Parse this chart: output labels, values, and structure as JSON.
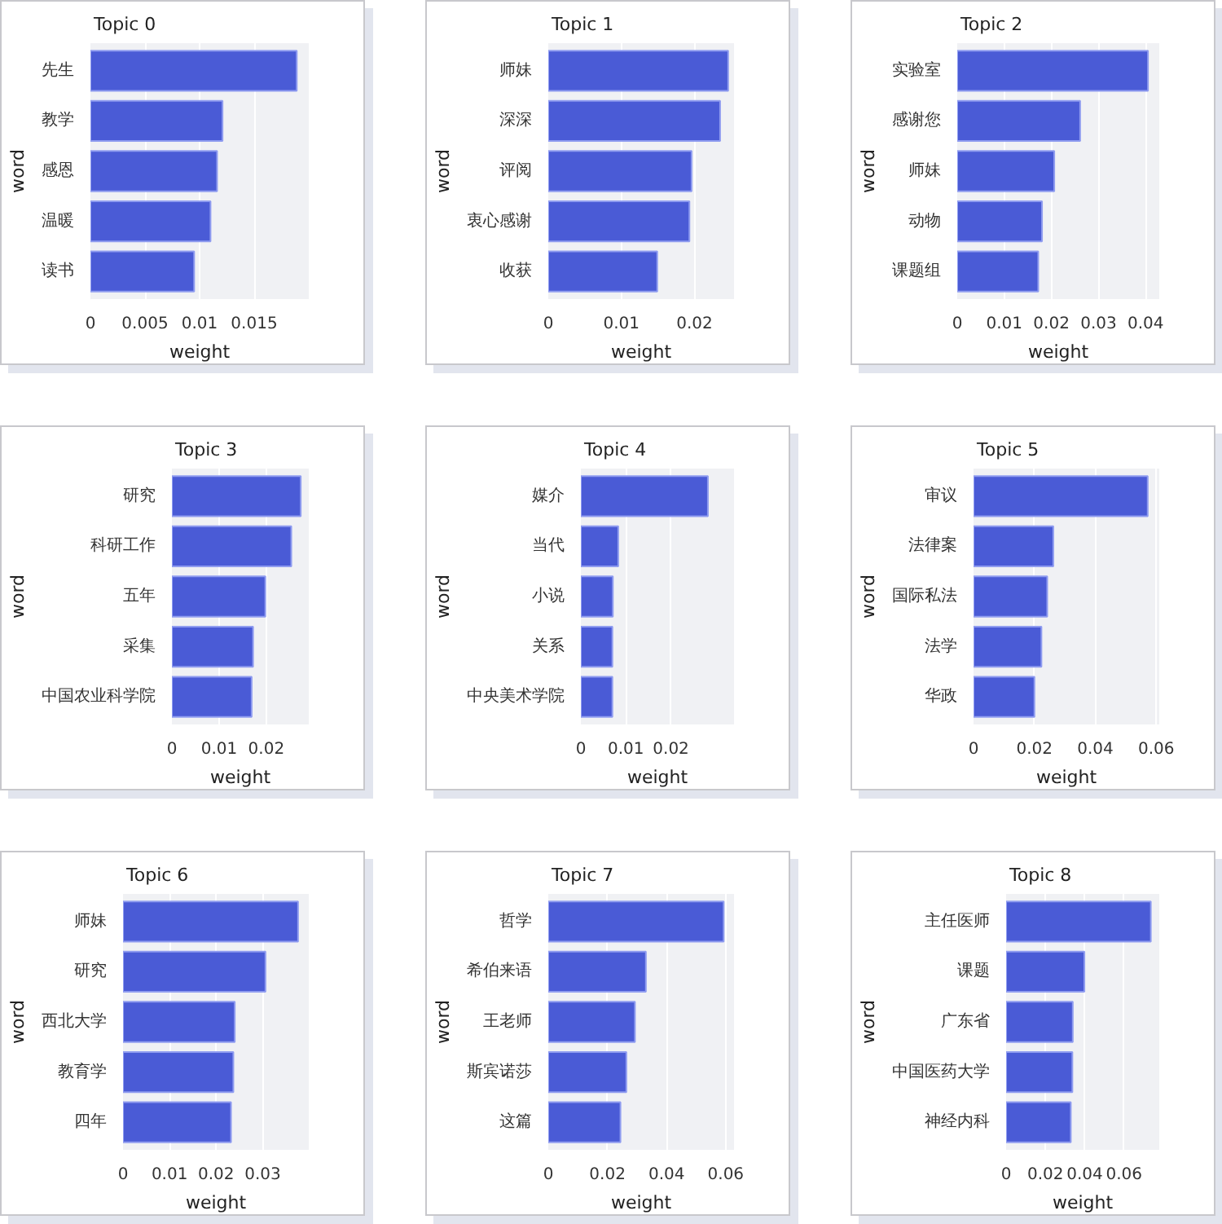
{
  "chart_data": [
    {
      "type": "bar",
      "orientation": "horizontal",
      "title": "Topic 0",
      "xlabel": "weight",
      "ylabel": "word",
      "categories": [
        "先生",
        "教学",
        "感恩",
        "温暖",
        "读书"
      ],
      "values": [
        0.0189,
        0.0121,
        0.0116,
        0.011,
        0.0095
      ],
      "color": "#4a5bd6",
      "xlim": [
        0,
        0.02
      ],
      "xticks": [
        0,
        0.005,
        0.01,
        0.015
      ],
      "grid": "x"
    },
    {
      "type": "bar",
      "orientation": "horizontal",
      "title": "Topic 1",
      "xlabel": "weight",
      "ylabel": "word",
      "categories": [
        "师妹",
        "深深",
        "评阅",
        "衷心感谢",
        "收获"
      ],
      "values": [
        0.0246,
        0.0235,
        0.0196,
        0.0193,
        0.0149
      ],
      "color": "#4a5bd6",
      "xlim": [
        0,
        0.0254
      ],
      "xticks": [
        0,
        0.01,
        0.02
      ],
      "grid": "x"
    },
    {
      "type": "bar",
      "orientation": "horizontal",
      "title": "Topic 2",
      "xlabel": "weight",
      "ylabel": "word",
      "categories": [
        "实验室",
        "感谢您",
        "师妹",
        "动物",
        "课题组"
      ],
      "values": [
        0.0405,
        0.0261,
        0.0206,
        0.018,
        0.0172
      ],
      "color": "#4a5bd6",
      "xlim": [
        0,
        0.0429
      ],
      "xticks": [
        0,
        0.01,
        0.02,
        0.03,
        0.04
      ],
      "grid": "x"
    },
    {
      "type": "bar",
      "orientation": "horizontal",
      "title": "Topic 3",
      "xlabel": "weight",
      "ylabel": "word",
      "categories": [
        "研究",
        "科研工作",
        "五年",
        "采集",
        "中国农业科学院"
      ],
      "values": [
        0.0273,
        0.0253,
        0.0198,
        0.0172,
        0.0169
      ],
      "color": "#4a5bd6",
      "xlim": [
        0,
        0.029
      ],
      "xticks": [
        0,
        0.01,
        0.02
      ],
      "grid": "x"
    },
    {
      "type": "bar",
      "orientation": "horizontal",
      "title": "Topic 4",
      "xlabel": "weight",
      "ylabel": "word",
      "categories": [
        "媒介",
        "当代",
        "小说",
        "关系",
        "中央美术学院"
      ],
      "values": [
        0.0282,
        0.0083,
        0.0071,
        0.007,
        0.007
      ],
      "color": "#4a5bd6",
      "xlim": [
        0,
        0.034
      ],
      "xticks": [
        0,
        0.01,
        0.02
      ],
      "grid": "x"
    },
    {
      "type": "bar",
      "orientation": "horizontal",
      "title": "Topic 5",
      "xlabel": "weight",
      "ylabel": "word",
      "categories": [
        "审议",
        "法律案",
        "国际私法",
        "法学",
        "华政"
      ],
      "values": [
        0.0572,
        0.0262,
        0.0242,
        0.0223,
        0.02
      ],
      "color": "#4a5bd6",
      "xlim": [
        0,
        0.061
      ],
      "xticks": [
        0,
        0.02,
        0.04,
        0.06
      ],
      "grid": "x"
    },
    {
      "type": "bar",
      "orientation": "horizontal",
      "title": "Topic 6",
      "xlabel": "weight",
      "ylabel": "word",
      "categories": [
        "师妹",
        "研究",
        "西北大学",
        "教育学",
        "四年"
      ],
      "values": [
        0.0376,
        0.0306,
        0.024,
        0.0237,
        0.0232
      ],
      "color": "#4a5bd6",
      "xlim": [
        0,
        0.0399
      ],
      "xticks": [
        0,
        0.01,
        0.02,
        0.03
      ],
      "grid": "x"
    },
    {
      "type": "bar",
      "orientation": "horizontal",
      "title": "Topic 7",
      "xlabel": "weight",
      "ylabel": "word",
      "categories": [
        "哲学",
        "希伯来语",
        "王老师",
        "斯宾诺莎",
        "这篇"
      ],
      "values": [
        0.0593,
        0.033,
        0.0293,
        0.0264,
        0.0244
      ],
      "color": "#4a5bd6",
      "xlim": [
        0,
        0.0628
      ],
      "xticks": [
        0,
        0.02,
        0.04,
        0.06
      ],
      "grid": "x"
    },
    {
      "type": "bar",
      "orientation": "horizontal",
      "title": "Topic 8",
      "xlabel": "weight",
      "ylabel": "word",
      "categories": [
        "主任医师",
        "课题",
        "广东省",
        "中国医药大学",
        "神经内科"
      ],
      "values": [
        0.0736,
        0.0398,
        0.0339,
        0.0337,
        0.0329
      ],
      "color": "#4a5bd6",
      "xlim": [
        0,
        0.0779
      ],
      "xticks": [
        0,
        0.02,
        0.04,
        0.06
      ],
      "grid": "x"
    }
  ]
}
